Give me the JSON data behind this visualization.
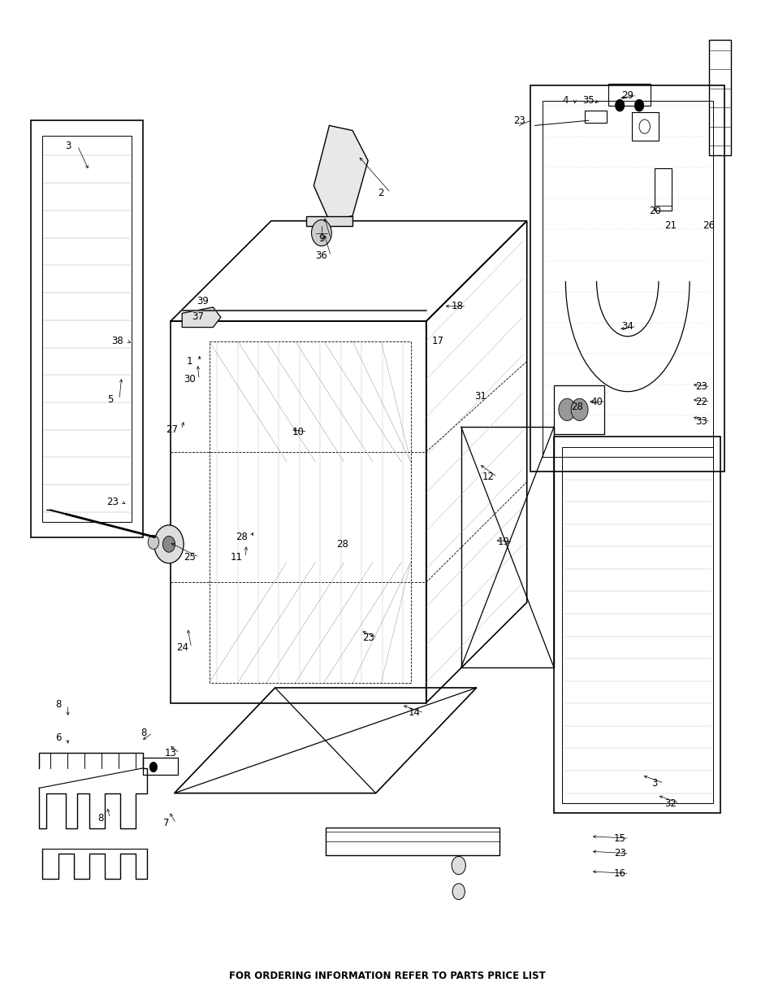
{
  "footer_text": "FOR ORDERING INFORMATION REFER TO PARTS PRICE LIST",
  "footer_fontsize": 8.5,
  "background_color": "#ffffff",
  "text_color": "#000000",
  "figsize": [
    9.54,
    12.35
  ],
  "dpi": 100
}
